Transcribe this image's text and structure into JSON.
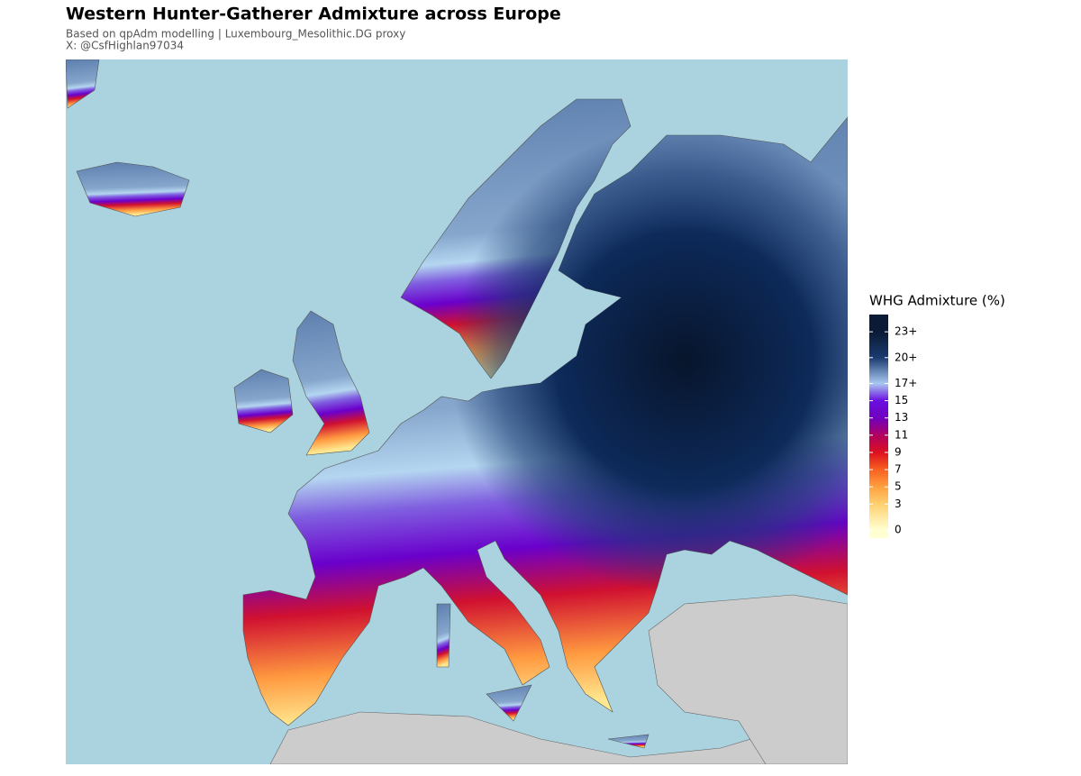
{
  "header": {
    "title": "Western Hunter-Gatherer Admixture across Europe",
    "subtitle": "Based on qpAdm modelling | Luxembourg_Mesolithic.DG proxy",
    "credit": "X: @CsfHighlan97034"
  },
  "legend": {
    "title": "WHG Admixture (%)",
    "lim": [
      0,
      25
    ],
    "ticks": [
      0,
      3,
      5,
      7,
      9,
      11,
      13,
      15,
      {
        "value": 17,
        "label": "17+"
      },
      {
        "value": 20,
        "label": "20+"
      },
      {
        "value": 23,
        "label": "23+"
      }
    ],
    "tick_colors": [
      "#ffffd0",
      "#ffd070",
      "#ffa040",
      "#f86020",
      "#dd1020",
      "#b00060",
      "#7000c0",
      "#6a10e0",
      "#a8c8f0",
      "#1a3a70",
      "#0b1a35"
    ]
  }
}
